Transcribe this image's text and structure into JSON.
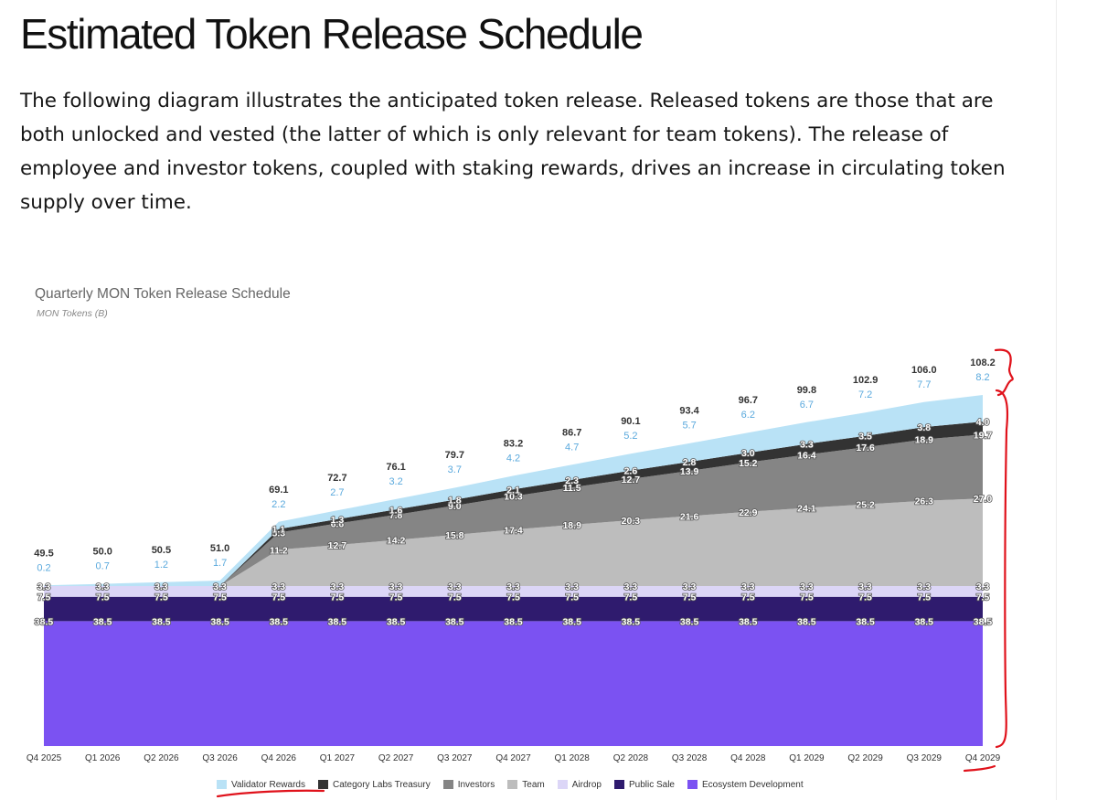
{
  "heading": "Estimated Token Release Schedule",
  "intro": "The following diagram illustrates the anticipated token release. Released tokens are those that are both unlocked and vested (the latter of which is only relevant for team tokens). The release of employee and investor tokens, coupled with staking rewards, drives an increase in circulating token supply over time.",
  "chart_data": {
    "type": "area",
    "stacked": true,
    "title": "Quarterly MON Token Release Schedule",
    "ylabel": "MON Tokens (B)",
    "xlabel": "",
    "ylim": [
      0,
      110
    ],
    "grid": false,
    "legend_position": "bottom",
    "categories": [
      "Q4 2025",
      "Q1 2026",
      "Q2 2026",
      "Q3 2026",
      "Q4 2026",
      "Q1 2027",
      "Q2 2027",
      "Q3 2027",
      "Q4 2027",
      "Q1 2028",
      "Q2 2028",
      "Q3 2028",
      "Q4 2028",
      "Q1 2029",
      "Q2 2029",
      "Q3 2029",
      "Q4 2029"
    ],
    "totals": [
      49.5,
      50.0,
      50.5,
      51.0,
      69.1,
      72.7,
      76.1,
      79.7,
      83.2,
      86.7,
      90.1,
      93.4,
      96.7,
      99.8,
      102.9,
      106.0,
      108.2
    ],
    "series": [
      {
        "name": "Ecosystem Development",
        "color": "#7b52f2",
        "label_color": "#ffffff",
        "values": [
          38.5,
          38.5,
          38.5,
          38.5,
          38.5,
          38.5,
          38.5,
          38.5,
          38.5,
          38.5,
          38.5,
          38.5,
          38.5,
          38.5,
          38.5,
          38.5,
          38.5
        ]
      },
      {
        "name": "Public Sale",
        "color": "#2f1b6e",
        "label_color": "#ffffff",
        "values": [
          7.5,
          7.5,
          7.5,
          7.5,
          7.5,
          7.5,
          7.5,
          7.5,
          7.5,
          7.5,
          7.5,
          7.5,
          7.5,
          7.5,
          7.5,
          7.5,
          7.5
        ]
      },
      {
        "name": "Airdrop",
        "color": "#dcd6f7",
        "label_color": "#ffffff",
        "values": [
          3.3,
          3.3,
          3.3,
          3.3,
          3.3,
          3.3,
          3.3,
          3.3,
          3.3,
          3.3,
          3.3,
          3.3,
          3.3,
          3.3,
          3.3,
          3.3,
          3.3
        ]
      },
      {
        "name": "Team",
        "color": "#bdbdbd",
        "label_color": "#ffffff",
        "values": [
          0,
          0,
          0,
          0,
          11.2,
          12.7,
          14.2,
          15.8,
          17.4,
          18.9,
          20.3,
          21.6,
          22.9,
          24.1,
          25.2,
          26.3,
          27.0
        ]
      },
      {
        "name": "Investors",
        "color": "#858585",
        "label_color": "#ffffff",
        "values": [
          0,
          0,
          0,
          0,
          5.3,
          6.6,
          7.8,
          9.0,
          10.3,
          11.5,
          12.7,
          13.9,
          15.2,
          16.4,
          17.6,
          18.9,
          19.7
        ]
      },
      {
        "name": "Category Labs Treasury",
        "color": "#333333",
        "label_color": "#ffffff",
        "values": [
          0,
          0,
          0,
          0,
          1.1,
          1.3,
          1.6,
          1.8,
          2.1,
          2.3,
          2.6,
          2.8,
          3.0,
          3.3,
          3.5,
          3.8,
          4.0
        ]
      },
      {
        "name": "Validator Rewards",
        "color": "#b9e2f6",
        "label_color": "#5aa9dd",
        "values": [
          0.2,
          0.7,
          1.2,
          1.7,
          2.2,
          2.7,
          3.2,
          3.7,
          4.2,
          4.7,
          5.2,
          5.7,
          6.2,
          6.7,
          7.2,
          7.7,
          8.2
        ]
      }
    ],
    "legend_order": [
      "Validator Rewards",
      "Category Labs Treasury",
      "Investors",
      "Team",
      "Airdrop",
      "Public Sale",
      "Ecosystem Development"
    ]
  }
}
